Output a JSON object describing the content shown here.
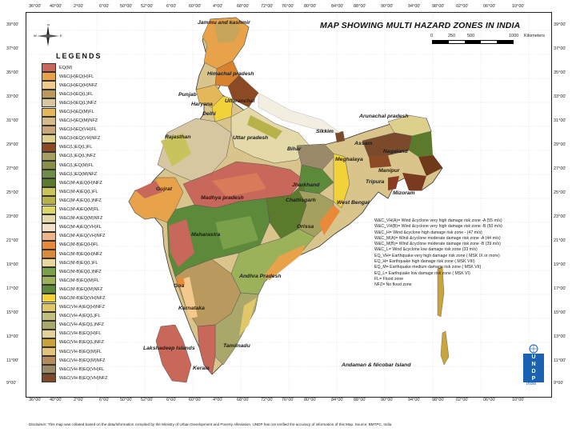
{
  "title": "MAP SHOWING MULTI HAZARD ZONES IN  INDIA",
  "scale": {
    "labels": [
      "0",
      "250",
      "500",
      "",
      "1000",
      "Kilometers"
    ]
  },
  "compass": {
    "n": "N",
    "s": "S",
    "e": "E",
    "w": "W"
  },
  "lon_ticks": [
    "36°00'",
    "40°00'",
    "42°00'",
    "46°00'",
    "50°00'",
    "52°00'",
    "56°00'",
    "60°00'",
    "64°00'",
    "68°00'",
    "72°00'",
    "76°00'",
    "80°00'",
    "84°00'",
    "88°00'",
    "90°00'",
    "94°00'",
    "98°00'",
    "102°00'",
    "106°00'",
    "110°00'"
  ],
  "lon_ticks_display": [
    "36°00'",
    "40°00'",
    "2°00'",
    "6°00'",
    "50°00'",
    "52°00'",
    "6°00'",
    "60°00'",
    "4°00'",
    "68°00'",
    "72°00'",
    "76°00'",
    "80°00'",
    "84°00'",
    "88°00'",
    "90°00'",
    "94°00'",
    "98°00'",
    "02°00'",
    "06°00'",
    "10°00'"
  ],
  "lat_ticks": [
    "39°00'",
    "37°00'",
    "35°00'",
    "33°00'",
    "31°00'",
    "29°00'",
    "27°00'",
    "25°00'",
    "23°00'",
    "21°00'",
    "19°00'",
    "17°00'",
    "15°00'",
    "13°00'",
    "11°00'",
    "9°00'"
  ],
  "legend": {
    "title": "LEGENDS",
    "items": [
      {
        "label": "EQ(M)",
        "color": "#c7685a"
      },
      {
        "label": "W&C(H)EQ(H)FL",
        "color": "#e8a34a"
      },
      {
        "label": "W&C(H)EQ(H)NFZ",
        "color": "#f3c98e"
      },
      {
        "label": "W&C(H)EQ(L)FL",
        "color": "#b9995e"
      },
      {
        "label": "W&C(H)EQ(L)NFZ",
        "color": "#d6c7a0"
      },
      {
        "label": "W&C(H)EQ(M)FL",
        "color": "#e3b75a"
      },
      {
        "label": "W&C(H)EQ(M)NFZ",
        "color": "#d8ba8a"
      },
      {
        "label": "W&C(H)EQ(VH)FL",
        "color": "#c9a77a"
      },
      {
        "label": "W&C(H)EQ(VH)NFZ",
        "color": "#ddd08c"
      },
      {
        "label": "W&C(L)EQ(L)FL",
        "color": "#8c4a24"
      },
      {
        "label": "W&C(L)EQ(L)NFZ",
        "color": "#a3a060"
      },
      {
        "label": "W&C(L)EQ(M)FL",
        "color": "#8a8e4a"
      },
      {
        "label": "W&C(L)EQ(M)NFZ",
        "color": "#6e8d46"
      },
      {
        "label": "W&C(M-A)EQ(H)NFZ",
        "color": "#5b7a2c"
      },
      {
        "label": "W&C(M-A)EQ(L)FL",
        "color": "#c9c35e"
      },
      {
        "label": "W&C(M-A)EQ(L)NFZ",
        "color": "#b8b24a"
      },
      {
        "label": "W&C(M-A)EQ(M)FL",
        "color": "#dcd76a"
      },
      {
        "label": "W&C(M-A)EQ(M)NFZ",
        "color": "#e4d9a8"
      },
      {
        "label": "W&C(M-A)EQ(VH)FL",
        "color": "#f2e0c8"
      },
      {
        "label": "W&C(M-A)EQ(VH)NFZ",
        "color": "#f0b48a"
      },
      {
        "label": "W&C(M-B)EQ(H)FL",
        "color": "#e88a3a"
      },
      {
        "label": "W&C(M-B)EQ(H)NFZ",
        "color": "#d98a3a"
      },
      {
        "label": "W&C(M-B)EQ(L)FL",
        "color": "#ead7a0"
      },
      {
        "label": "W&C(M-B)EQ(L)NFZ",
        "color": "#7aa04a"
      },
      {
        "label": "W&C(M-B)EQ(M)FL",
        "color": "#9cb25a"
      },
      {
        "label": "W&C(M-B)EQ(M)NFZ",
        "color": "#5c8a3a"
      },
      {
        "label": "W&C(M-B)EQ(VH)NFZ",
        "color": "#f1d23a"
      },
      {
        "label": "W&C(VH-A)EQ(H)NFZ",
        "color": "#e0c76a"
      },
      {
        "label": "W&C(VH-A)EQ(L)FL",
        "color": "#c2c080"
      },
      {
        "label": "W&C(VH-A)EQ(L)NFZ",
        "color": "#a9a86a"
      },
      {
        "label": "W&C(VH-B)EQ(H)FL",
        "color": "#e2d29a"
      },
      {
        "label": "W&C(VH-B)EQ(L)NFZ",
        "color": "#c9a43a"
      },
      {
        "label": "W&C(VH-B)EQ(M)FL",
        "color": "#e2c27a"
      },
      {
        "label": "W&C(VH-B)EQ(M)NFZ",
        "color": "#b68a5a"
      },
      {
        "label": "W&C(VH-B)EQ(VH)FL",
        "color": "#9b8a6a"
      },
      {
        "label": "W&C(VH-B)EQ(VH)NFZ",
        "color": "#7a4a2a"
      }
    ]
  },
  "places": {
    "jk": "Jammu and kashmir",
    "hp": "Himachal pradesh",
    "punjab": "Punjab",
    "haryana": "Haryana",
    "delhi": "Delhi",
    "uttaranchal": "Uttaranchal",
    "rajasthan": "Rajasthan",
    "up": "Uttar pradesh",
    "bihar": "Bihar",
    "sikkim": "Sikkim",
    "arunachal": "Arunachal pradesh",
    "assam": "Assam",
    "nagaland": "Nagaland",
    "meghalaya": "Meghalaya",
    "manipur": "Manipur",
    "mizoram": "Mizoram",
    "tripura": "Tripura",
    "gujrat": "Gujrat",
    "mp": "Madhya pradesh",
    "jharkhand": "Jharkhand",
    "westbengal": "West Bengal",
    "chattisgarh": "Chattisgarh",
    "orissa": "Orissa",
    "maharastra": "Maharastra",
    "ap": "Andhra Pradesh",
    "goa": "Goa",
    "karnataka": "Karnataka",
    "lakshadeep": "Lakshadeep Islands",
    "tamilnadu": "Tamilnadu",
    "kerala": "Kerala",
    "andaman": "Andaman & Nicobar Island"
  },
  "notes": [
    "W&C_VH(A)= Wind &cyclone very high damage risk zone -A (55 m/s)",
    "W&C_VH(B)= Wind &cyclone very high damage risk zone -B (50 m/s)",
    "W&C_H= Wind &cyclone high damage risk zone - (47 m/s)",
    "W&C_M(A)= Wind &cyclone moderate damage risk zone -A (44 m/s)",
    "W&C_M(B)= Wind &cyclone moderate damage risk zone -B (39 m/s)",
    "W&C_L= Wind &cyclone low damage risk zone (33 m/s)",
    "EQ_VH= Earthquake very high damage risk zone ( MSK IX or more)",
    "EQ_H= Earthquake high damage risk zone ( MSK VIII)",
    "EQ_M= Earthquake medium damage risk zone ( MSK VII)",
    "EQ_L= Earthquake low damage risk zone ( MSK VI)",
    "FL= Flood zone",
    "NFZ= No flood zone"
  ],
  "undp": {
    "letters": [
      "U",
      "N",
      "D",
      "P"
    ],
    "sub": "India"
  },
  "disclaimer": "Disclaimer: This map was collated based on the data/information compiled by the Ministry of Urban Development and Poverty Alleviation. UNDP has not verified the accuracy of information of this Map.   Source: BMTPC, India"
}
